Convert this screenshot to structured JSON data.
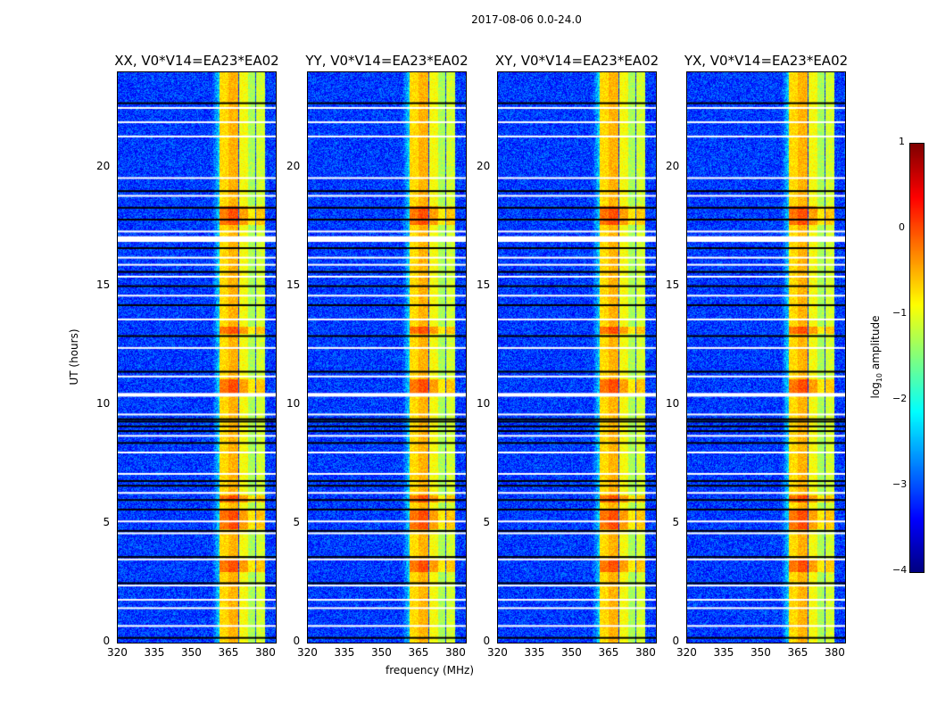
{
  "chart_data": {
    "type": "heatmap",
    "title": "2017-08-06 0.0-24.0",
    "xlabel": "frequency (MHz)",
    "ylabel": "UT (hours)",
    "xlim": [
      320,
      384
    ],
    "ylim": [
      0,
      24
    ],
    "xticks": [
      "320",
      "335",
      "350",
      "365",
      "380"
    ],
    "yticks": [
      "0",
      "5",
      "10",
      "15",
      "20"
    ],
    "panels": [
      {
        "title": "XX, V0*V14=EA23*EA02"
      },
      {
        "title": "YY, V0*V14=EA23*EA02"
      },
      {
        "title": "XY, V0*V14=EA23*EA02"
      },
      {
        "title": "YX, V0*V14=EA23*EA02"
      }
    ],
    "colorbar": {
      "label": "log10 amplitude",
      "label_main": "log",
      "label_sub": "10",
      "label_rest": " amplitude",
      "range": [
        -4,
        1
      ],
      "ticks": [
        "1",
        "0",
        "−1",
        "−2",
        "−3",
        "−4"
      ],
      "colormap": "jet"
    },
    "background_level": -3.1,
    "bands": [
      {
        "f0": 361,
        "f1": 364.5,
        "level": -0.7
      },
      {
        "f0": 364.5,
        "f1": 368.5,
        "level": -0.5
      },
      {
        "f0": 369,
        "f1": 372.5,
        "level": -0.9
      },
      {
        "f0": 372.5,
        "f1": 375.5,
        "level": -1.3
      },
      {
        "f0": 376,
        "f1": 379.5,
        "level": -1.1
      }
    ],
    "bright_times": [
      [
        3.0,
        3.5
      ],
      [
        4.8,
        5.6
      ],
      [
        5.9,
        6.2
      ],
      [
        10.5,
        11.1
      ],
      [
        17.6,
        18.4
      ],
      [
        13.0,
        13.3
      ]
    ],
    "flagged_white": [
      0.7,
      1.45,
      1.8,
      2.4,
      3.5,
      4.6,
      5.1,
      6.3,
      7.1,
      8.0,
      8.7,
      9.6,
      10.45,
      11.2,
      12.4,
      13.6,
      14.6,
      15.4,
      15.9,
      16.2,
      16.9,
      17.3,
      18.8,
      19.55,
      21.3,
      21.9,
      22.5
    ],
    "flagged_black": [
      0.2,
      2.5,
      3.6,
      4.7,
      5.6,
      6.0,
      6.6,
      6.8,
      8.4,
      8.9,
      9.1,
      9.3,
      9.4,
      11.4,
      12.9,
      14.2,
      15.0,
      15.6,
      16.6,
      17.05,
      17.8,
      18.3,
      19.0,
      22.7
    ]
  }
}
